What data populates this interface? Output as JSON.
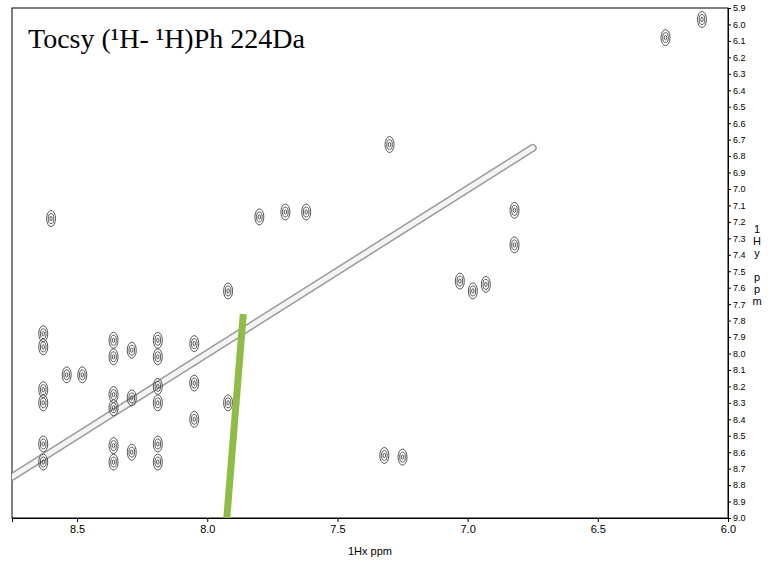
{
  "chart_data": {
    "type": "scatter",
    "title": "Tocsy (¹H- ¹H)Ph 224Da",
    "x_label": "1Hx ppm",
    "y_label": "1Hy ppm",
    "grid": false,
    "xlim": [
      8.75,
      6.0
    ],
    "xticks": [
      8.5,
      {
        "value": 8,
        "label": "8.0"
      },
      7.5,
      {
        "value": 7,
        "label": "7.0"
      },
      6.5,
      {
        "value": 6,
        "label": "6.0"
      }
    ],
    "ylim": [
      5.9,
      9.0
    ],
    "yticks": [
      5.9,
      {
        "value": 6,
        "label": "6.0"
      },
      6.1,
      6.2,
      6.3,
      6.4,
      6.5,
      6.6,
      6.7,
      6.8,
      6.9,
      {
        "value": 7,
        "label": "7.0"
      },
      7.1,
      7.2,
      7.3,
      7.4,
      7.5,
      7.6,
      7.7,
      7.8,
      7.9,
      {
        "value": 8,
        "label": "8.0"
      },
      8.1,
      8.2,
      8.3,
      8.4,
      8.5,
      8.6,
      8.7,
      8.8,
      8.9,
      {
        "value": 9,
        "label": "9.0"
      }
    ],
    "series": [
      {
        "type": "line",
        "x": [
          8.75,
          6.75
        ],
        "values": [
          8.75,
          6.75
        ],
        "color": "#9a9a9a"
      },
      {
        "type": "scatter",
        "color": "#444444",
        "marker": "contour",
        "x": [
          8.6,
          8.63,
          8.63,
          8.63,
          8.63,
          8.63,
          8.63,
          8.54,
          8.48,
          8.36,
          8.36,
          8.36,
          8.36,
          8.36,
          8.36,
          8.29,
          8.29,
          8.29,
          8.19,
          8.19,
          8.19,
          8.19,
          8.19,
          8.19,
          8.05,
          8.05,
          8.05,
          7.92,
          7.92,
          7.8,
          7.7,
          7.62,
          7.3,
          7.25,
          7.32,
          7.03,
          6.98,
          6.93,
          6.82,
          6.82,
          6.24,
          6.1
        ],
        "values": [
          7.18,
          7.88,
          7.96,
          8.22,
          8.3,
          8.55,
          8.66,
          8.13,
          8.13,
          7.92,
          8.02,
          8.25,
          8.33,
          8.56,
          8.66,
          7.98,
          8.27,
          8.6,
          7.92,
          8.02,
          8.2,
          8.3,
          8.55,
          8.66,
          7.94,
          8.18,
          8.4,
          7.62,
          8.3,
          7.17,
          7.14,
          7.14,
          6.73,
          8.63,
          8.62,
          7.56,
          7.62,
          7.58,
          7.34,
          7.13,
          6.08,
          5.97
        ]
      }
    ]
  }
}
